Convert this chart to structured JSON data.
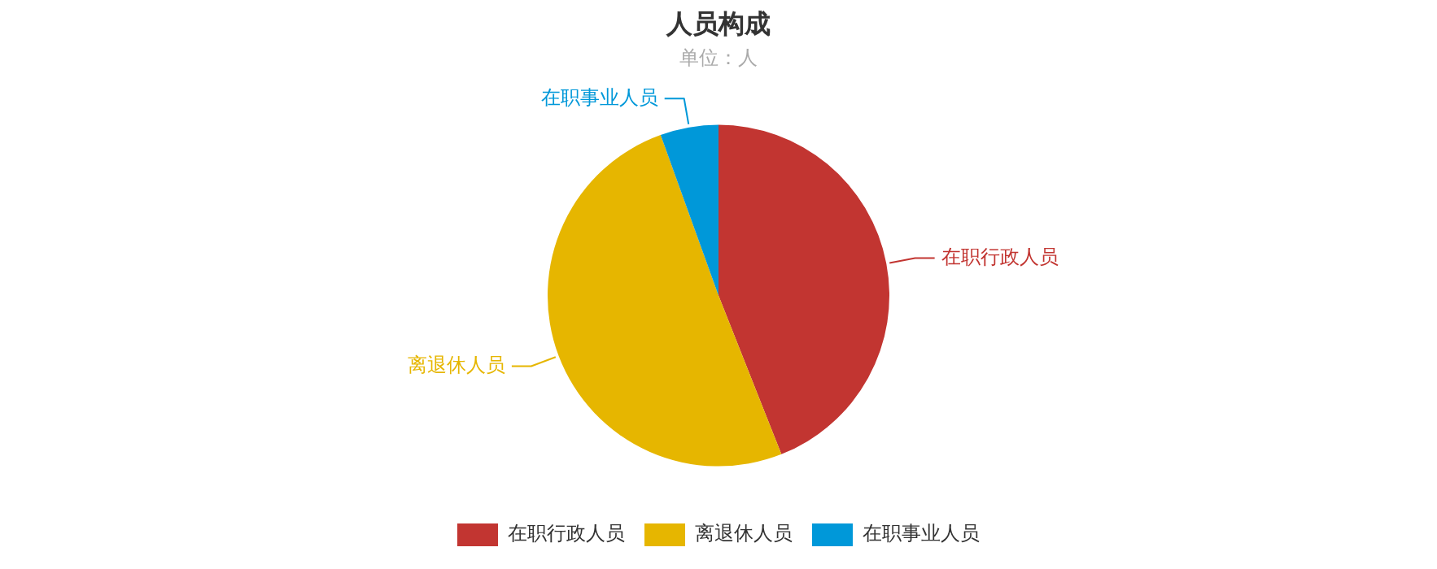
{
  "chart_data": {
    "type": "pie",
    "title": "人员构成",
    "subtitle": "单位：人",
    "categories": [
      "在职行政人员",
      "离退休人员",
      "在职事业人员"
    ],
    "values": [
      44,
      50.5,
      5.5
    ],
    "colors": [
      "#c23531",
      "#e6b600",
      "#0098d9"
    ],
    "legend": "bottom"
  }
}
